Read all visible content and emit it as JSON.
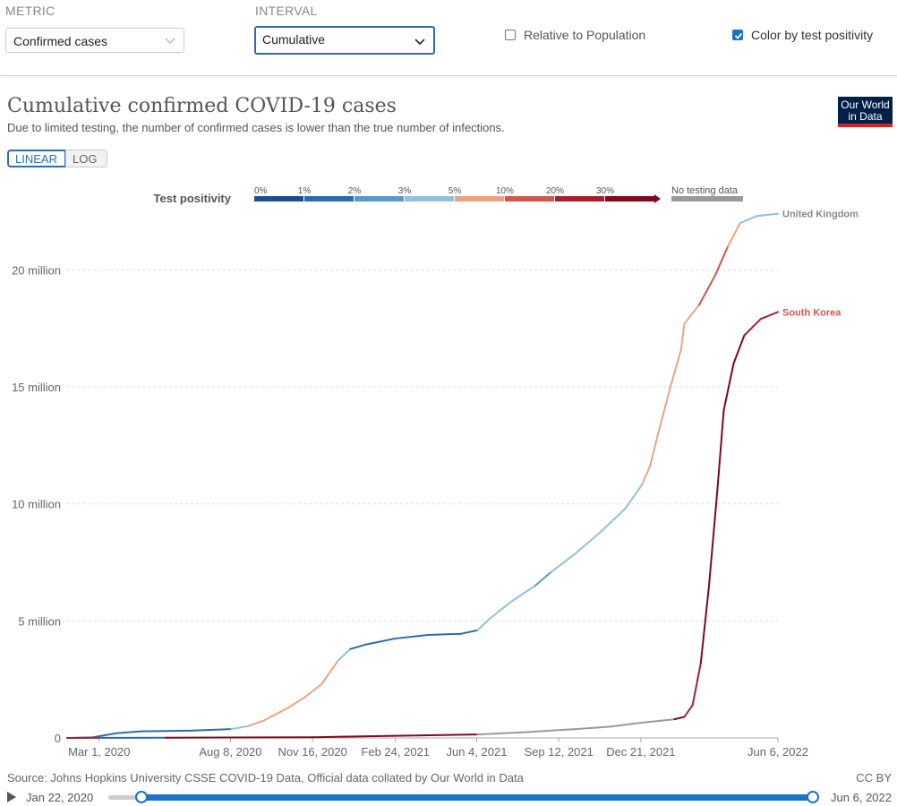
{
  "controls": {
    "metric_label": "METRIC",
    "metric_value": "Confirmed cases",
    "interval_label": "INTERVAL",
    "interval_value": "Cumulative",
    "relative_label": "Relative to Population",
    "relative_checked": false,
    "color_label": "Color by test positivity",
    "color_checked": true
  },
  "header": {
    "title": "Cumulative confirmed COVID-19 cases",
    "subtitle": "Due to limited testing, the number of confirmed cases is lower than the true number of infections.",
    "logo_line1": "Our World",
    "logo_line2": "in Data"
  },
  "scale_toggle": {
    "linear": "LINEAR",
    "log": "LOG"
  },
  "footer": {
    "source": "Source: Johns Hopkins University CSSE COVID-19 Data, Official data collated by Our World in Data",
    "license": "CC BY"
  },
  "timeline": {
    "start": "Jan 22, 2020",
    "end": "Jun 6, 2022"
  },
  "colors": {
    "p0": "#1d4e89",
    "p1": "#2f6aa8",
    "p2": "#5b98c9",
    "p3": "#93c0dd",
    "p4": "#e8a583",
    "p5": "#cd584c",
    "p6": "#a7202f",
    "p7": "#7d0a1e",
    "none": "#9a9a9a",
    "uk_label": "#888888",
    "kr_label": "#cd584c"
  },
  "chart_data": {
    "type": "line",
    "title": "Cumulative confirmed COVID-19 cases",
    "ylabel": "",
    "ylim": [
      0,
      22500000
    ],
    "yticks": [
      {
        "value": 0,
        "label": "0"
      },
      {
        "value": 5000000,
        "label": "5 million"
      },
      {
        "value": 10000000,
        "label": "10 million"
      },
      {
        "value": 15000000,
        "label": "15 million"
      },
      {
        "value": 20000000,
        "label": "20 million"
      }
    ],
    "x_range_days": [
      0,
      866
    ],
    "xticks": [
      {
        "day": 39,
        "label": "Mar 1, 2020"
      },
      {
        "day": 199,
        "label": "Aug 8, 2020"
      },
      {
        "day": 299,
        "label": "Nov 16, 2020"
      },
      {
        "day": 400,
        "label": "Feb 24, 2021"
      },
      {
        "day": 499,
        "label": "Jun 4, 2021"
      },
      {
        "day": 599,
        "label": "Sep 12, 2021"
      },
      {
        "day": 699,
        "label": "Dec 21, 2021"
      },
      {
        "day": 866,
        "label": "Jun 6, 2022"
      }
    ],
    "legend": {
      "title": "Test positivity",
      "bins": [
        "0%",
        "1%",
        "2%",
        "3%",
        "5%",
        "10%",
        "20%",
        "30%"
      ],
      "no_data": "No testing data"
    },
    "series": [
      {
        "name": "United Kingdom",
        "points": [
          [
            0,
            0,
            "p0"
          ],
          [
            30,
            20000,
            "p0"
          ],
          [
            60,
            200000,
            "p1"
          ],
          [
            90,
            280000,
            "p1"
          ],
          [
            150,
            310000,
            "p1"
          ],
          [
            200,
            380000,
            "p1"
          ],
          [
            220,
            500000,
            "p3"
          ],
          [
            240,
            750000,
            "p4"
          ],
          [
            270,
            1300000,
            "p4"
          ],
          [
            290,
            1750000,
            "p4"
          ],
          [
            310,
            2300000,
            "p4"
          ],
          [
            330,
            3300000,
            "p4"
          ],
          [
            345,
            3800000,
            "p3"
          ],
          [
            365,
            4000000,
            "p1"
          ],
          [
            400,
            4250000,
            "p1"
          ],
          [
            440,
            4400000,
            "p1"
          ],
          [
            480,
            4450000,
            "p1"
          ],
          [
            500,
            4600000,
            "p1"
          ],
          [
            515,
            5100000,
            "p3"
          ],
          [
            540,
            5800000,
            "p3"
          ],
          [
            570,
            6500000,
            "p3"
          ],
          [
            590,
            7100000,
            "p2"
          ],
          [
            620,
            7900000,
            "p3"
          ],
          [
            650,
            8800000,
            "p3"
          ],
          [
            680,
            9800000,
            "p3"
          ],
          [
            700,
            10800000,
            "p3"
          ],
          [
            710,
            11600000,
            "p4"
          ],
          [
            720,
            13000000,
            "p4"
          ],
          [
            735,
            15000000,
            "p4"
          ],
          [
            748,
            16600000,
            "p4"
          ],
          [
            752,
            17700000,
            "p4"
          ],
          [
            770,
            18500000,
            "p4"
          ],
          [
            790,
            19800000,
            "p5"
          ],
          [
            805,
            21000000,
            "p5"
          ],
          [
            820,
            22000000,
            "p4"
          ],
          [
            840,
            22300000,
            "p3"
          ],
          [
            866,
            22400000,
            "p3"
          ]
        ]
      },
      {
        "name": "South Korea",
        "points": [
          [
            0,
            0,
            "p0"
          ],
          [
            40,
            4000,
            "p6"
          ],
          [
            120,
            10000,
            "p1"
          ],
          [
            300,
            30000,
            "p7"
          ],
          [
            400,
            90000,
            "p7"
          ],
          [
            500,
            150000,
            "p7"
          ],
          [
            560,
            250000,
            "none"
          ],
          [
            620,
            380000,
            "none"
          ],
          [
            660,
            480000,
            "none"
          ],
          [
            700,
            650000,
            "none"
          ],
          [
            740,
            800000,
            "none"
          ],
          [
            752,
            900000,
            "p7"
          ],
          [
            762,
            1400000,
            "p6"
          ],
          [
            772,
            3200000,
            "p6"
          ],
          [
            782,
            6500000,
            "p7"
          ],
          [
            792,
            10500000,
            "p7"
          ],
          [
            800,
            14000000,
            "p7"
          ],
          [
            812,
            16000000,
            "p7"
          ],
          [
            825,
            17200000,
            "p7"
          ],
          [
            845,
            17900000,
            "p6"
          ],
          [
            866,
            18200000,
            "p6"
          ]
        ]
      }
    ]
  }
}
